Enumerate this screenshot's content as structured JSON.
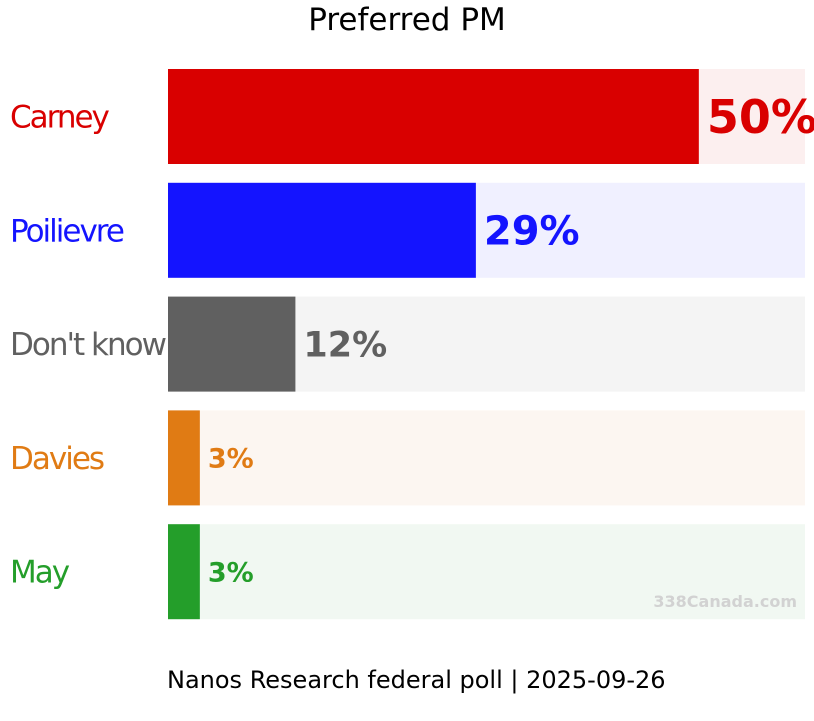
{
  "chart_data": {
    "type": "bar",
    "orientation": "horizontal",
    "title": "Preferred PM",
    "categories": [
      "Carney",
      "Poilievre",
      "Don't know",
      "Davies",
      "May"
    ],
    "values": [
      50,
      29,
      12,
      3,
      3
    ],
    "value_labels": [
      "50%",
      "29%",
      "12%",
      "3%",
      "3%"
    ],
    "colors": [
      "#d90000",
      "#1414ff",
      "#606060",
      "#e07b14",
      "#249e2a"
    ],
    "background_colors": [
      "#fcefef",
      "#f0f0ff",
      "#f4f4f4",
      "#fcf6f1",
      "#f1f8f2"
    ],
    "xlim": [
      0,
      60
    ],
    "grid": false,
    "legend": "none"
  },
  "watermark": "338Canada.com",
  "footer": "Nanos Research federal poll | 2025-09-26"
}
